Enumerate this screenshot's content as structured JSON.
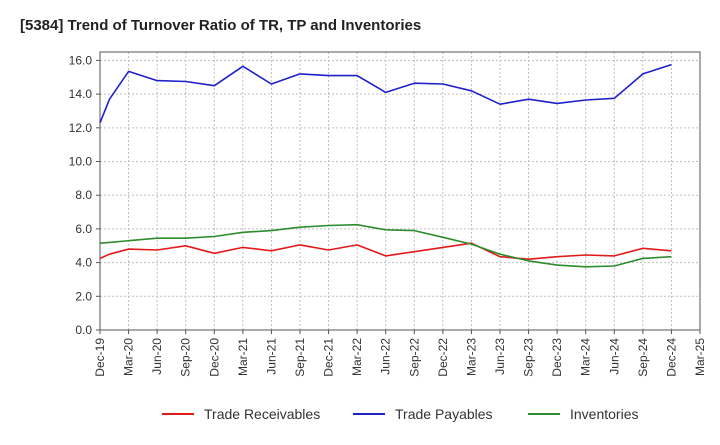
{
  "chart_data": {
    "type": "line",
    "title": "[5384]  Trend of Turnover Ratio of TR, TP and Inventories",
    "xlabel": "",
    "ylabel": "",
    "ylim": [
      0,
      16.5
    ],
    "yticks": [
      "0.0",
      "2.0",
      "4.0",
      "6.0",
      "8.0",
      "10.0",
      "12.0",
      "14.0",
      "16.0"
    ],
    "grid": true,
    "legend_position": "bottom",
    "x_tick_labels": [
      "Dec-19",
      "Mar-20",
      "Jun-20",
      "Sep-20",
      "Dec-20",
      "Mar-21",
      "Jun-21",
      "Sep-21",
      "Dec-21",
      "Mar-22",
      "Jun-22",
      "Sep-22",
      "Dec-22",
      "Mar-23",
      "Jun-23",
      "Sep-23",
      "Dec-23",
      "Mar-24",
      "Jun-24",
      "Sep-24",
      "Dec-24",
      "Mar-25"
    ],
    "x": [
      "Dec-19",
      "Jan-20",
      "Mar-20",
      "Jun-20",
      "Sep-20",
      "Dec-20",
      "Mar-21",
      "Jun-21",
      "Sep-21",
      "Dec-21",
      "Mar-22",
      "Jun-22",
      "Sep-22",
      "Dec-22",
      "Mar-23",
      "Jun-23",
      "Sep-23",
      "Dec-23",
      "Mar-24",
      "Jun-24",
      "Sep-24",
      "Dec-24"
    ],
    "series": [
      {
        "name": "Trade Receivables",
        "color": "#e31a1c",
        "values": [
          4.25,
          4.5,
          4.8,
          4.75,
          5.0,
          4.55,
          4.9,
          4.7,
          5.05,
          4.75,
          5.05,
          4.4,
          4.65,
          4.9,
          5.15,
          4.35,
          4.2,
          4.35,
          4.45,
          4.4,
          4.85,
          4.7
        ]
      },
      {
        "name": "Trade Payables",
        "color": "#1f1fcc",
        "values": [
          12.3,
          13.7,
          15.35,
          14.8,
          14.75,
          14.5,
          15.65,
          14.6,
          15.2,
          15.1,
          15.1,
          14.1,
          14.65,
          14.6,
          14.2,
          13.4,
          13.7,
          13.45,
          13.65,
          13.75,
          15.2,
          15.75
        ]
      },
      {
        "name": "Inventories",
        "color": "#2e8b2e",
        "values": [
          5.15,
          5.2,
          5.3,
          5.45,
          5.45,
          5.55,
          5.8,
          5.9,
          6.1,
          6.2,
          6.25,
          5.95,
          5.9,
          5.5,
          5.1,
          4.5,
          4.1,
          3.85,
          3.75,
          3.8,
          4.25,
          4.35
        ]
      }
    ]
  }
}
